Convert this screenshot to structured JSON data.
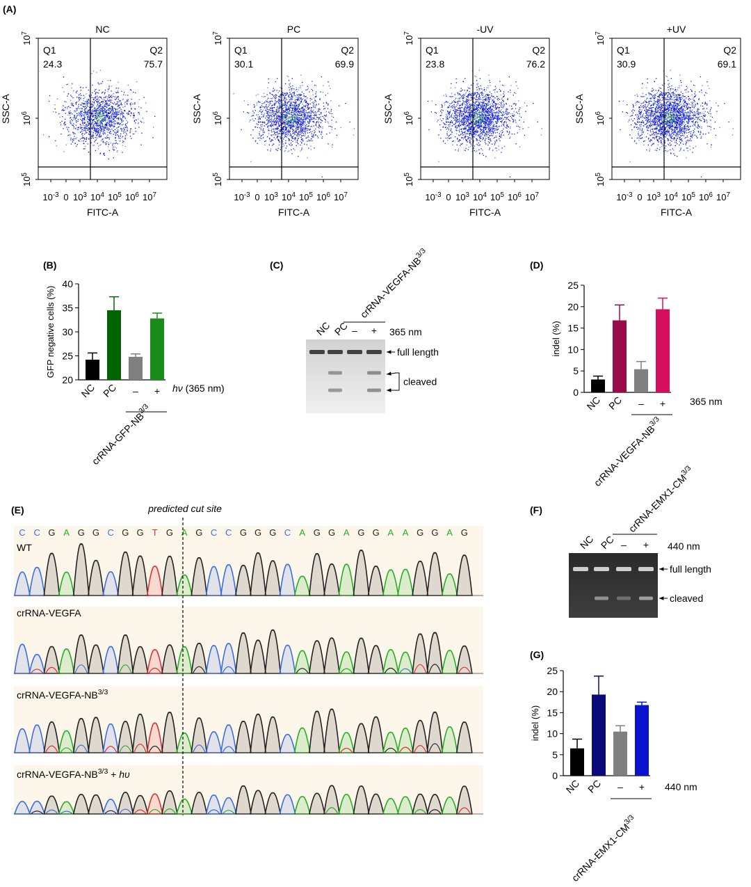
{
  "panel_labels": {
    "a": "(A)",
    "b": "(B)",
    "c": "(C)",
    "d": "(D)",
    "e": "(E)",
    "f": "(F)",
    "g": "(G)"
  },
  "panel_a": {
    "x_axis_label": "FITC-A",
    "y_axis_label": "SSC-A",
    "x_tick_labels": [
      {
        "base": "10",
        "exp": "-3"
      },
      {
        "base": "0",
        "exp": ""
      },
      {
        "base": "10",
        "exp": "3"
      },
      {
        "base": "10",
        "exp": "4"
      },
      {
        "base": "10",
        "exp": "5"
      },
      {
        "base": "10",
        "exp": "6"
      },
      {
        "base": "10",
        "exp": "7"
      }
    ],
    "y_tick_labels": [
      {
        "base": "10",
        "exp": "5"
      },
      {
        "base": "10",
        "exp": "6"
      },
      {
        "base": "10",
        "exp": "7"
      }
    ],
    "dot_colors": [
      "#1414d8",
      "#4a7cff",
      "#1fa04a",
      "#e8e23a"
    ],
    "plots": [
      {
        "title": "NC",
        "q1_label": "Q1",
        "q1_value": "24.3",
        "q2_label": "Q2",
        "q2_value": "75.7"
      },
      {
        "title": "PC",
        "q1_label": "Q1",
        "q1_value": "30.1",
        "q2_label": "Q2",
        "q2_value": "69.9"
      },
      {
        "title": "-UV",
        "q1_label": "Q1",
        "q1_value": "23.8",
        "q2_label": "Q2",
        "q2_value": "76.2"
      },
      {
        "title": "+UV",
        "q1_label": "Q1",
        "q1_value": "30.9",
        "q2_label": "Q2",
        "q2_value": "69.1"
      }
    ]
  },
  "chart_data": [
    {
      "type": "bar",
      "panel": "B",
      "ylabel": "GFP negative cells (%)",
      "ylim": [
        20,
        40
      ],
      "yticks": [
        20,
        25,
        30,
        35,
        40
      ],
      "categories": [
        "NC",
        "PC",
        "–",
        "+"
      ],
      "values": [
        24.2,
        34.5,
        24.8,
        32.8
      ],
      "errors": [
        1.4,
        2.8,
        0.6,
        1.1
      ],
      "colors": [
        "#000000",
        "#006400",
        "#808080",
        "#1a8c1a"
      ],
      "condition_label": "hν (365 nm)",
      "condition_label_italic": "hν",
      "condition_label_rest": " (365 nm)",
      "group_label": {
        "base": "crRNA-GFP-NB",
        "sup": "3/3"
      }
    },
    {
      "type": "bar",
      "panel": "D",
      "ylabel": "indel (%)",
      "ylim": [
        0,
        25
      ],
      "yticks": [
        0,
        5,
        10,
        15,
        20,
        25
      ],
      "categories": [
        "NC",
        "PC",
        "–",
        "+"
      ],
      "values": [
        3.0,
        16.8,
        5.4,
        19.4
      ],
      "errors": [
        0.8,
        3.6,
        1.8,
        2.6
      ],
      "colors": [
        "#000000",
        "#9b0a4a",
        "#808080",
        "#d4105e"
      ],
      "condition_label": "365 nm",
      "group_label": {
        "base": "crRNA-VEGFA-NB",
        "sup": "3/3"
      }
    },
    {
      "type": "bar",
      "panel": "G",
      "ylabel": "indel (%)",
      "ylim": [
        0,
        25
      ],
      "yticks": [
        0,
        5,
        10,
        15,
        20,
        25
      ],
      "categories": [
        "NC",
        "PC",
        "–",
        "+"
      ],
      "values": [
        6.5,
        19.3,
        10.5,
        16.8
      ],
      "errors": [
        2.2,
        4.4,
        1.4,
        0.7
      ],
      "colors": [
        "#000000",
        "#0a0a78",
        "#808080",
        "#0a14cc"
      ],
      "condition_label": "440 nm",
      "group_label": {
        "base": "crRNA-EMX1-CM",
        "sup": "3/3"
      }
    }
  ],
  "panel_c": {
    "lanes": [
      "NC",
      "PC",
      "–",
      "+"
    ],
    "group_label": {
      "base": "crRNA-VEGFA-NB",
      "sup": "3/3"
    },
    "condition": "365 nm",
    "full_length": "full length",
    "cleaved": "cleaved"
  },
  "panel_f": {
    "lanes": [
      "NC",
      "PC",
      "–",
      "+"
    ],
    "group_label": {
      "base": "crRNA-EMX1-CM",
      "sup": "3/3"
    },
    "condition": "440 nm",
    "full_length": "full length",
    "cleaved": "cleaved"
  },
  "panel_e": {
    "cut_site_label": "predicted cut site",
    "sequence": [
      "C",
      "C",
      "G",
      "A",
      "G",
      "G",
      "C",
      "G",
      "G",
      "T",
      "G",
      "A",
      "G",
      "C",
      "C",
      "G",
      "G",
      "G",
      "C",
      "A",
      "G",
      "G",
      "A",
      "G",
      "G",
      "A",
      "A",
      "G",
      "G",
      "A",
      "G"
    ],
    "base_colors": {
      "A": "#22b022",
      "C": "#3a6ee0",
      "G": "#222222",
      "T": "#e03030"
    },
    "tracks": [
      {
        "label": "WT"
      },
      {
        "label": "crRNA-VEGFA"
      },
      {
        "label": "crRNA-VEGFA-NB",
        "sup": "3/3"
      },
      {
        "label": "crRNA-VEGFA-NB",
        "sup": "3/3",
        "suffix_plain": " + ",
        "suffix_italic": "hυ"
      }
    ]
  }
}
